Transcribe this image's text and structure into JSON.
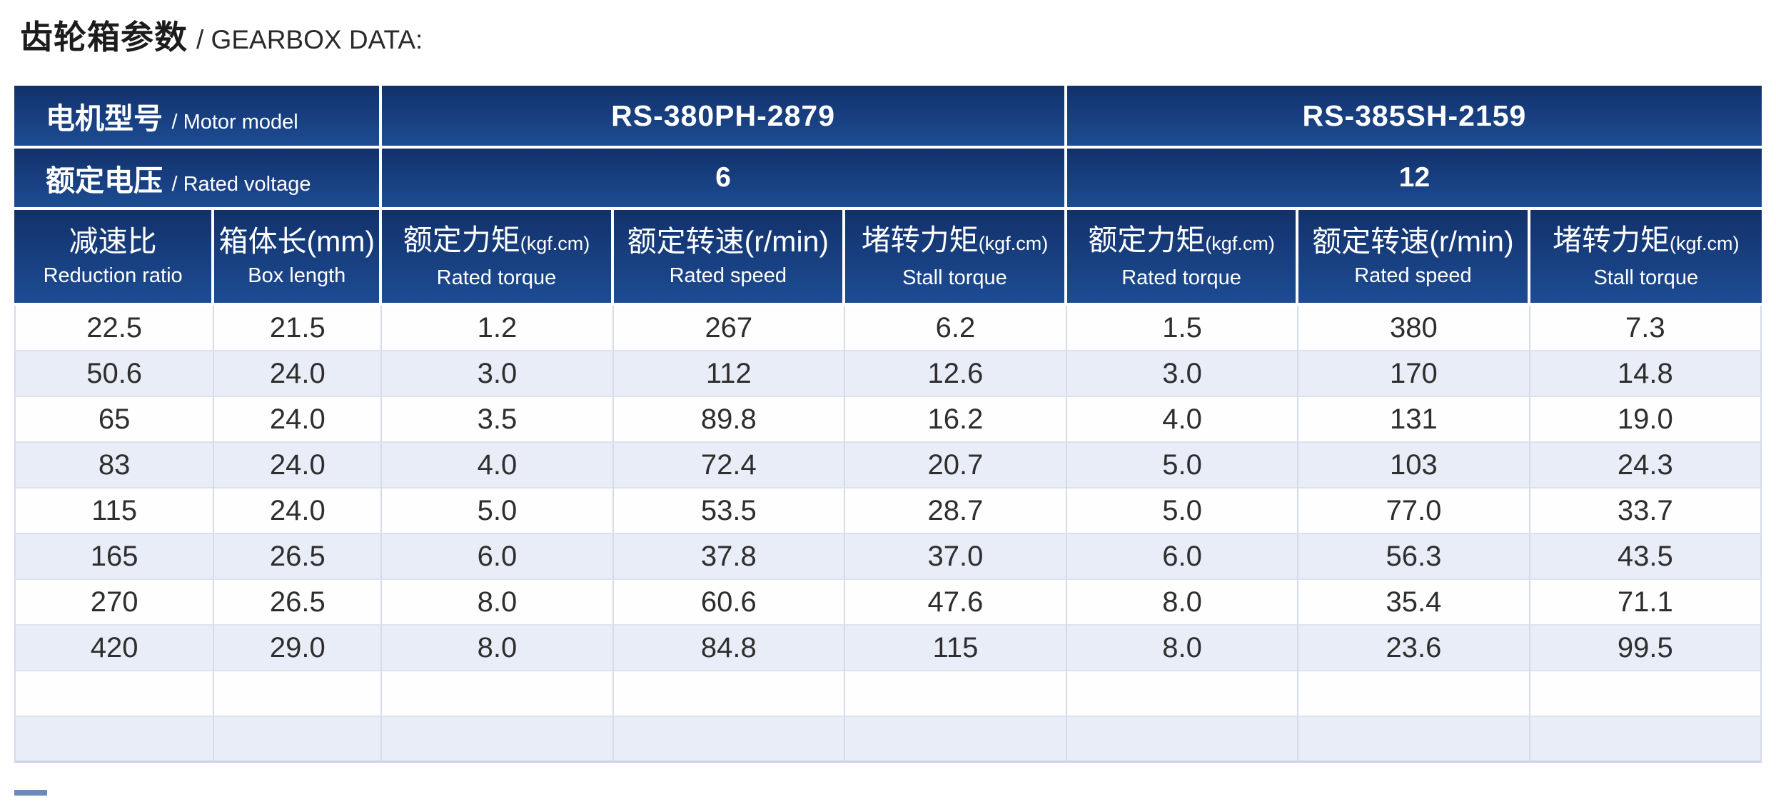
{
  "page": {
    "title_zh": "齿轮箱参数",
    "title_en": "/ GEARBOX DATA:"
  },
  "colors": {
    "header_gradient_top": "#12316b",
    "header_gradient_bottom": "#1d4c93",
    "header_text": "#ffffff",
    "row_alt_background": "#e9edf7",
    "row_border": "#d5dbe9",
    "data_text": "#2e2e2e"
  },
  "table": {
    "row_labels": [
      {
        "zh": "电机型号",
        "en": "/ Motor model"
      },
      {
        "zh": "额定电压",
        "en": "/ Rated voltage"
      }
    ],
    "models": [
      "RS-380PH-2879",
      "RS-385SH-2159"
    ],
    "voltages": [
      "6",
      "12"
    ],
    "columns": [
      {
        "zh": "减速比",
        "unit": "",
        "unit_small": false,
        "en": "Reduction ratio"
      },
      {
        "zh": "箱体长",
        "unit": "(mm)",
        "unit_small": false,
        "en": "Box length"
      },
      {
        "zh": "额定力矩",
        "unit": "(kgf.cm)",
        "unit_small": true,
        "en": "Rated torque"
      },
      {
        "zh": "额定转速",
        "unit": "(r/min)",
        "unit_small": false,
        "en": "Rated speed"
      },
      {
        "zh": "堵转力矩",
        "unit": "(kgf.cm)",
        "unit_small": true,
        "en": "Stall torque"
      },
      {
        "zh": "额定力矩",
        "unit": "(kgf.cm)",
        "unit_small": true,
        "en": "Rated torque"
      },
      {
        "zh": "额定转速",
        "unit": "(r/min)",
        "unit_small": false,
        "en": "Rated speed"
      },
      {
        "zh": "堵转力矩",
        "unit": "(kgf.cm)",
        "unit_small": true,
        "en": "Stall torque"
      }
    ],
    "rows": [
      [
        "22.5",
        "21.5",
        "1.2",
        "267",
        "6.2",
        "1.5",
        "380",
        "7.3"
      ],
      [
        "50.6",
        "24.0",
        "3.0",
        "112",
        "12.6",
        "3.0",
        "170",
        "14.8"
      ],
      [
        "65",
        "24.0",
        "3.5",
        "89.8",
        "16.2",
        "4.0",
        "131",
        "19.0"
      ],
      [
        "83",
        "24.0",
        "4.0",
        "72.4",
        "20.7",
        "5.0",
        "103",
        "24.3"
      ],
      [
        "115",
        "24.0",
        "5.0",
        "53.5",
        "28.7",
        "5.0",
        "77.0",
        "33.7"
      ],
      [
        "165",
        "26.5",
        "6.0",
        "37.8",
        "37.0",
        "6.0",
        "56.3",
        "43.5"
      ],
      [
        "270",
        "26.5",
        "8.0",
        "60.6",
        "47.6",
        "8.0",
        "35.4",
        "71.1"
      ],
      [
        "420",
        "29.0",
        "8.0",
        "84.8",
        "115",
        "8.0",
        "23.6",
        "99.5"
      ]
    ],
    "empty_rows": 2
  }
}
